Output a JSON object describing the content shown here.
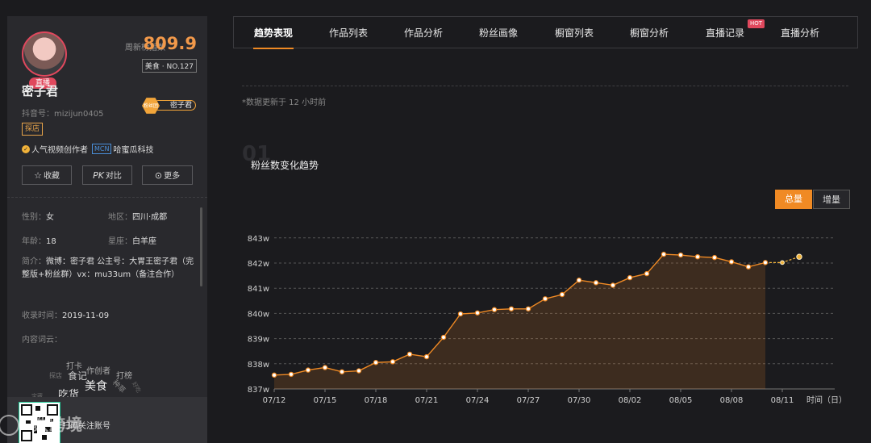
{
  "profile": {
    "index_label": "周新榜指数",
    "index_value": "809.9",
    "rank": "美食 · NO.127",
    "live_tag": "直播",
    "name": "密子君",
    "fan_badge_hex": "粉丝团",
    "fan_badge_name": "密子君",
    "douyin_id": "抖音号：mizijun0405",
    "category_tag": "探店",
    "creator_label": "人气视频创作者",
    "mcn_tag": "MCN",
    "mcn_name": "哈蜜瓜科技",
    "buttons": {
      "favorite": "收藏",
      "compare": "对比",
      "more": "更多"
    },
    "gender_key": "性别：",
    "gender": "女",
    "region_key": "地区：",
    "region": "四川·成都",
    "age_key": "年龄：",
    "age": "18",
    "zodiac_key": "星座：",
    "zodiac": "白羊座",
    "bio_key": "简介：",
    "bio": "微博：密子君 公主号：大胃王密子君（完整版+粉丝群）vx：mu33um（备注合作）",
    "collected_key": "收录时间：",
    "collected": "2019-11-09",
    "tags_key": "内容词云：",
    "cloud_words": [
      "打卡",
      "作创者",
      "食记",
      "打榜",
      "美食",
      "吃货",
      "种草",
      "探店",
      "好吃",
      "宝藏"
    ],
    "footer_text": "扫码关注账号",
    "watermark": "数跨境"
  },
  "nav": {
    "tabs": [
      "趋势表现",
      "作品列表",
      "作品分析",
      "粉丝画像",
      "橱窗列表",
      "橱窗分析",
      "直播记录",
      "直播分析"
    ],
    "hot_badge": "HOT"
  },
  "section": {
    "update_note": "*数据更新于 12 小时前",
    "number": "01",
    "title": "粉丝数变化趋势",
    "toggle_total": "总量",
    "toggle_increase": "增量"
  },
  "chart_data": {
    "type": "area",
    "xlabel": "时间（日）",
    "ylabel": "",
    "ylim": [
      837,
      843
    ],
    "y_ticks": [
      "837w",
      "838w",
      "839w",
      "840w",
      "841w",
      "842w",
      "843w"
    ],
    "x_ticks": [
      "07/12",
      "07/15",
      "07/18",
      "07/21",
      "07/24",
      "07/27",
      "07/30",
      "08/02",
      "08/05",
      "08/08",
      "08/11"
    ],
    "x_start_day": 12,
    "values": [
      837.55,
      837.58,
      837.75,
      837.85,
      837.68,
      837.72,
      838.05,
      838.08,
      838.38,
      838.28,
      839.05,
      839.98,
      840.02,
      840.15,
      840.18,
      840.18,
      840.58,
      840.75,
      841.32,
      841.22,
      841.12,
      841.42,
      841.58,
      842.35,
      842.32,
      842.25,
      842.22,
      842.05,
      841.85,
      842.02
    ],
    "forecast": [
      842.02,
      842.02,
      842.25
    ],
    "line_color": "#f08a24",
    "fill_color": "#f08a24"
  }
}
